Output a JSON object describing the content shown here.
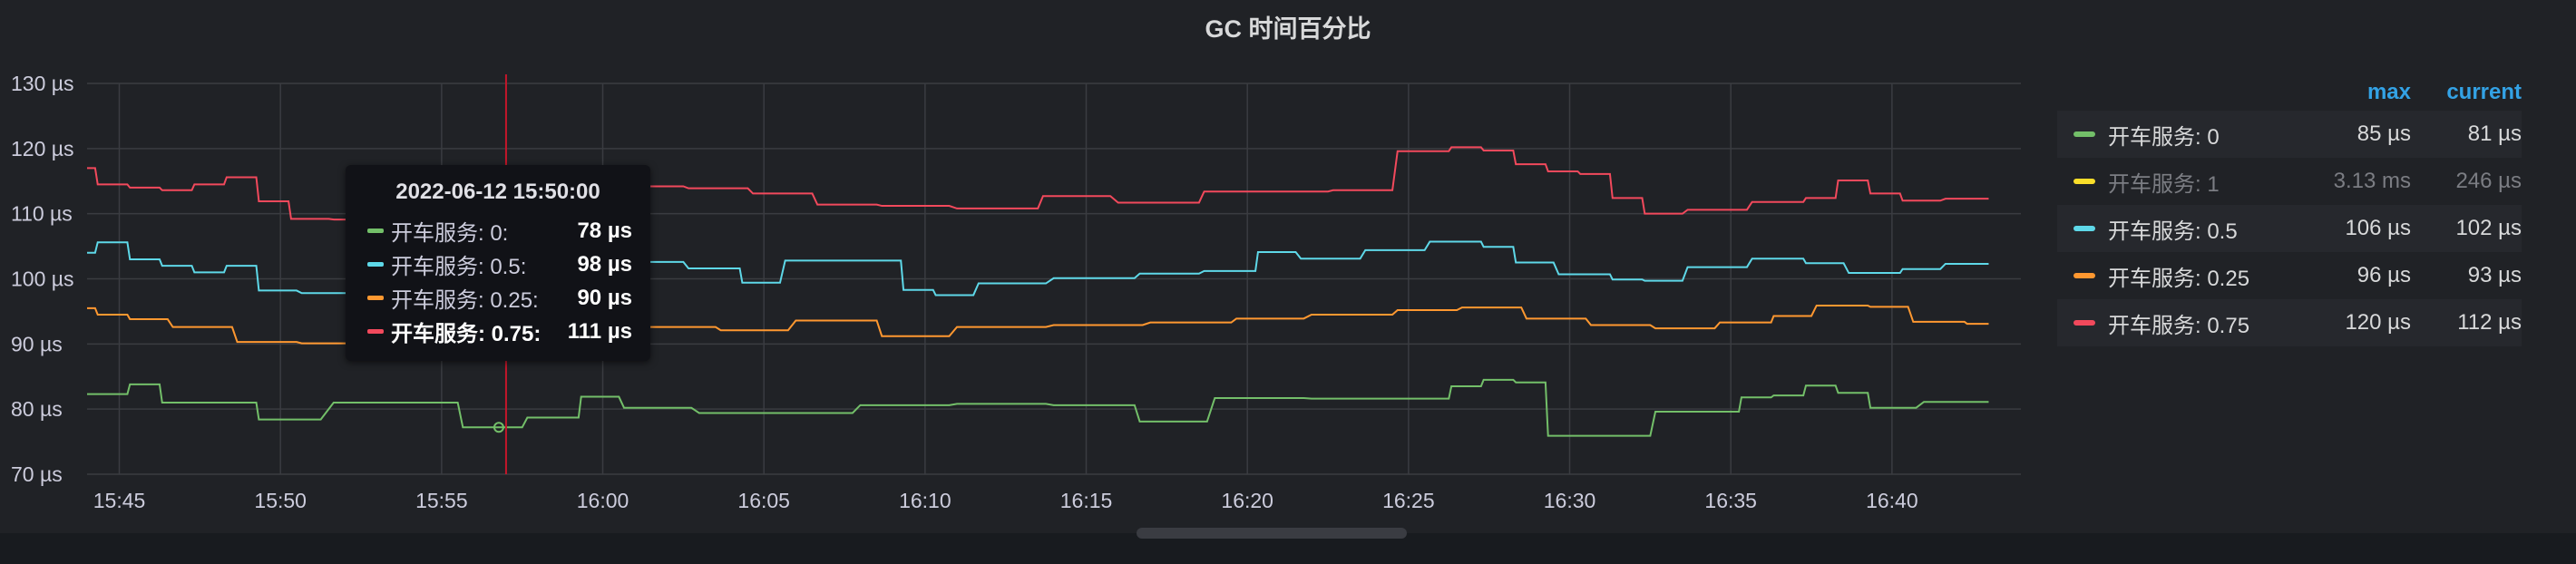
{
  "panel": {
    "title": "GC 时间百分比"
  },
  "chart_data": {
    "type": "line",
    "title": "GC 时间百分比",
    "xlabel": "",
    "ylabel": "",
    "y_unit": "µs",
    "ylim": [
      70,
      130
    ],
    "yticks": [
      70,
      80,
      90,
      100,
      110,
      120,
      130
    ],
    "ytick_labels": [
      "70 µs",
      "80 µs",
      "90 µs",
      "100 µs",
      "110 µs",
      "120 µs",
      "130 µs"
    ],
    "xlim": [
      "15:44",
      "16:44"
    ],
    "xticks": [
      "15:45",
      "15:50",
      "15:55",
      "16:00",
      "16:05",
      "16:10",
      "16:15",
      "16:20",
      "16:25",
      "16:30",
      "16:35",
      "16:40"
    ],
    "grid": true,
    "legend_position": "right",
    "crosshair_time": "15:57",
    "series": [
      {
        "name": "开车服务: 0",
        "color": "#73bf69",
        "x": [
          "15:44",
          "15:45",
          "15:46",
          "15:47",
          "15:49",
          "15:50",
          "15:55",
          "15:57",
          "15:59",
          "16:00",
          "16:02",
          "16:05",
          "16:07",
          "16:10",
          "16:13",
          "16:16",
          "16:18",
          "16:21",
          "16:24",
          "16:26",
          "16:27",
          "16:28",
          "16:29",
          "16:30",
          "16:32",
          "16:34",
          "16:35",
          "16:36",
          "16:37",
          "16:38",
          "16:39",
          "16:40",
          "16:43"
        ],
        "values": [
          82.3,
          82.3,
          83.8,
          81,
          81,
          78.4,
          81,
          77.2,
          78.7,
          81.9,
          80.2,
          79.4,
          79.4,
          80.6,
          80.8,
          80.6,
          78.1,
          81.7,
          81.6,
          81.6,
          83.5,
          84.5,
          84.1,
          75.9,
          75.9,
          79.6,
          79.6,
          81.8,
          82.1,
          83.6,
          82.5,
          80.2,
          81.1
        ]
      },
      {
        "name": "开车服务: 1",
        "color": "#f2cc0c",
        "hidden": true,
        "x": [],
        "values": []
      },
      {
        "name": "开车服务: 0.5",
        "color": "#5ed8e8",
        "x": [
          "15:44",
          "15:45",
          "15:46",
          "15:47",
          "15:48",
          "15:49",
          "15:50",
          "15:52",
          "15:55",
          "15:57",
          "15:59",
          "16:00",
          "16:02",
          "16:04",
          "16:05",
          "16:07",
          "16:09",
          "16:10",
          "16:11",
          "16:13",
          "16:16",
          "16:18",
          "16:20",
          "16:21",
          "16:23",
          "16:25",
          "16:27",
          "16:28",
          "16:29",
          "16:31",
          "16:32",
          "16:33",
          "16:35",
          "16:37",
          "16:38",
          "16:40",
          "16:41",
          "16:43"
        ],
        "values": [
          104,
          105.6,
          103,
          102,
          101,
          102,
          98.2,
          97.8,
          98.4,
          97.8,
          99.2,
          101,
          102.6,
          101.6,
          99.4,
          102.8,
          102.8,
          98.3,
          97.5,
          99.3,
          100.1,
          100.8,
          101.2,
          104.1,
          103.1,
          104.4,
          105.7,
          104.9,
          102.5,
          100.7,
          99.9,
          99.7,
          101.8,
          103.1,
          102.4,
          100.9,
          101.5,
          102.3
        ]
      },
      {
        "name": "开车服务: 0.25",
        "color": "#ff9830",
        "x": [
          "15:44",
          "15:45",
          "15:46",
          "15:48",
          "15:50",
          "15:52",
          "15:55",
          "15:57",
          "15:59",
          "16:00",
          "16:03",
          "16:05",
          "16:08",
          "16:10",
          "16:13",
          "16:16",
          "16:19",
          "16:21",
          "16:24",
          "16:26",
          "16:28",
          "16:30",
          "16:32",
          "16:34",
          "16:36",
          "16:37",
          "16:39",
          "16:40",
          "16:42",
          "16:43"
        ],
        "values": [
          95.5,
          94.5,
          93.8,
          92.6,
          90.3,
          90.1,
          90.3,
          90.4,
          91.3,
          92.4,
          92.6,
          92.1,
          93.6,
          91.2,
          92.6,
          92.9,
          93.3,
          93.9,
          94.5,
          95.2,
          95.6,
          93.9,
          92.9,
          92.4,
          93.3,
          94.3,
          95.9,
          95.7,
          93.4,
          93.1
        ]
      },
      {
        "name": "开车服务: 0.75",
        "color": "#f2495c",
        "x": [
          "15:44",
          "15:45",
          "15:46",
          "15:47",
          "15:48",
          "15:49",
          "15:50",
          "15:51",
          "15:53",
          "15:55",
          "15:57",
          "15:59",
          "16:00",
          "16:02",
          "16:04",
          "16:06",
          "16:08",
          "16:10",
          "16:13",
          "16:15",
          "16:18",
          "16:20",
          "16:22",
          "16:24",
          "16:26",
          "16:27",
          "16:28",
          "16:29",
          "16:30",
          "16:31",
          "16:32",
          "16:33",
          "16:35",
          "16:37",
          "16:38",
          "16:39",
          "16:40",
          "16:41",
          "16:43"
        ],
        "values": [
          117,
          114.5,
          114,
          113.6,
          114.5,
          115.6,
          111.9,
          109.2,
          109.1,
          110.2,
          111,
          110.5,
          111.2,
          114.2,
          113.9,
          113.1,
          111.4,
          111.2,
          110.8,
          112.7,
          111.7,
          113.4,
          113.4,
          113.6,
          119.6,
          120.2,
          119.7,
          117.6,
          116.5,
          116.1,
          112.4,
          110,
          110.6,
          111.8,
          112.4,
          115.1,
          113.1,
          112,
          112.3
        ]
      }
    ]
  },
  "legend": {
    "header_max": "max",
    "header_current": "current",
    "items": [
      {
        "name": "开车服务: 0",
        "color": "#73bf69",
        "max": "85 µs",
        "current": "81 µs"
      },
      {
        "name": "开车服务: 1",
        "color": "#fade2a",
        "max": "3.13 ms",
        "current": "246 µs"
      },
      {
        "name": "开车服务: 0.5",
        "color": "#5ed8e8",
        "max": "106 µs",
        "current": "102 µs"
      },
      {
        "name": "开车服务: 0.25",
        "color": "#ff9830",
        "max": "96 µs",
        "current": "93 µs"
      },
      {
        "name": "开车服务: 0.75",
        "color": "#f2495c",
        "max": "120 µs",
        "current": "112 µs"
      }
    ]
  },
  "tooltip": {
    "time": "2022-06-12 15:50:00",
    "rows": [
      {
        "name": "开车服务: 0:",
        "value": "78 µs",
        "color": "#73bf69"
      },
      {
        "name": "开车服务: 0.5:",
        "value": "98 µs",
        "color": "#5ed8e8"
      },
      {
        "name": "开车服务: 0.25:",
        "value": "90 µs",
        "color": "#ff9830"
      },
      {
        "name": "开车服务: 0.75:",
        "value": "111 µs",
        "color": "#f2495c"
      }
    ]
  }
}
